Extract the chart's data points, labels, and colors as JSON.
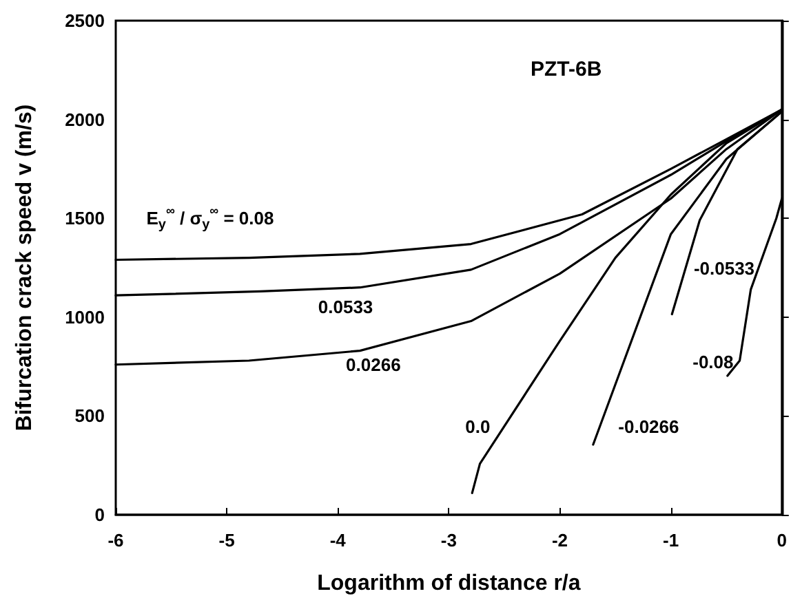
{
  "chart_data": {
    "type": "line",
    "title": "PZT-6B",
    "xlabel": "Logarithm of distance r/a",
    "ylabel": "Bifurcation crack speed v (m/s)",
    "xlim": [
      -6,
      0
    ],
    "xticks": [
      -6,
      -5,
      -4,
      -3,
      -2,
      -1,
      0
    ],
    "ylim": [
      0,
      2500
    ],
    "yticks": [
      0,
      500,
      1000,
      1500,
      2000,
      2500
    ],
    "grid": false,
    "marker": "none",
    "line_style": "solid",
    "series": [
      {
        "color": "#000000",
        "x": [
          -6,
          -4.8,
          -3.8,
          -2.8,
          -1.8,
          -1,
          -0.5,
          0
        ],
        "values": [
          1290,
          1300,
          1320,
          1370,
          1520,
          1750,
          1900,
          2050
        ]
      },
      {
        "color": "#000000",
        "x": [
          -6,
          -4.7,
          -3.8,
          -2.8,
          -2,
          -1,
          -0.5,
          0
        ],
        "values": [
          1110,
          1130,
          1150,
          1240,
          1420,
          1720,
          1890,
          2050
        ]
      },
      {
        "color": "#000000",
        "x": [
          -6,
          -4.8,
          -3.8,
          -2.8,
          -2,
          -1,
          -0.5,
          0
        ],
        "values": [
          760,
          780,
          830,
          980,
          1220,
          1600,
          1850,
          2050
        ]
      },
      {
        "color": "#000000",
        "x": [
          -2.79,
          -2.72,
          -2,
          -1.5,
          -1,
          -0.5,
          0
        ],
        "values": [
          110,
          258,
          880,
          1300,
          1620,
          1880,
          2050
        ]
      },
      {
        "color": "#000000",
        "x": [
          -1.7,
          -1,
          -0.5,
          0
        ],
        "values": [
          355,
          1420,
          1800,
          2040
        ]
      },
      {
        "color": "#000000",
        "x": [
          -0.99,
          -0.74,
          -0.4,
          0
        ],
        "values": [
          1015,
          1490,
          1850,
          2040
        ]
      },
      {
        "color": "#000000",
        "x": [
          -0.49,
          -0.38,
          -0.28,
          -0.05,
          0
        ],
        "values": [
          703,
          780,
          1140,
          1500,
          1600
        ]
      }
    ],
    "annotations": [
      "E$_{y}$$^{∞}$ / σ$_{y}$$^{∞}$ = 0.08",
      "0.0533",
      "0.0266",
      "0.0",
      "-0.0266",
      "-0.0533",
      "-0.08"
    ]
  }
}
